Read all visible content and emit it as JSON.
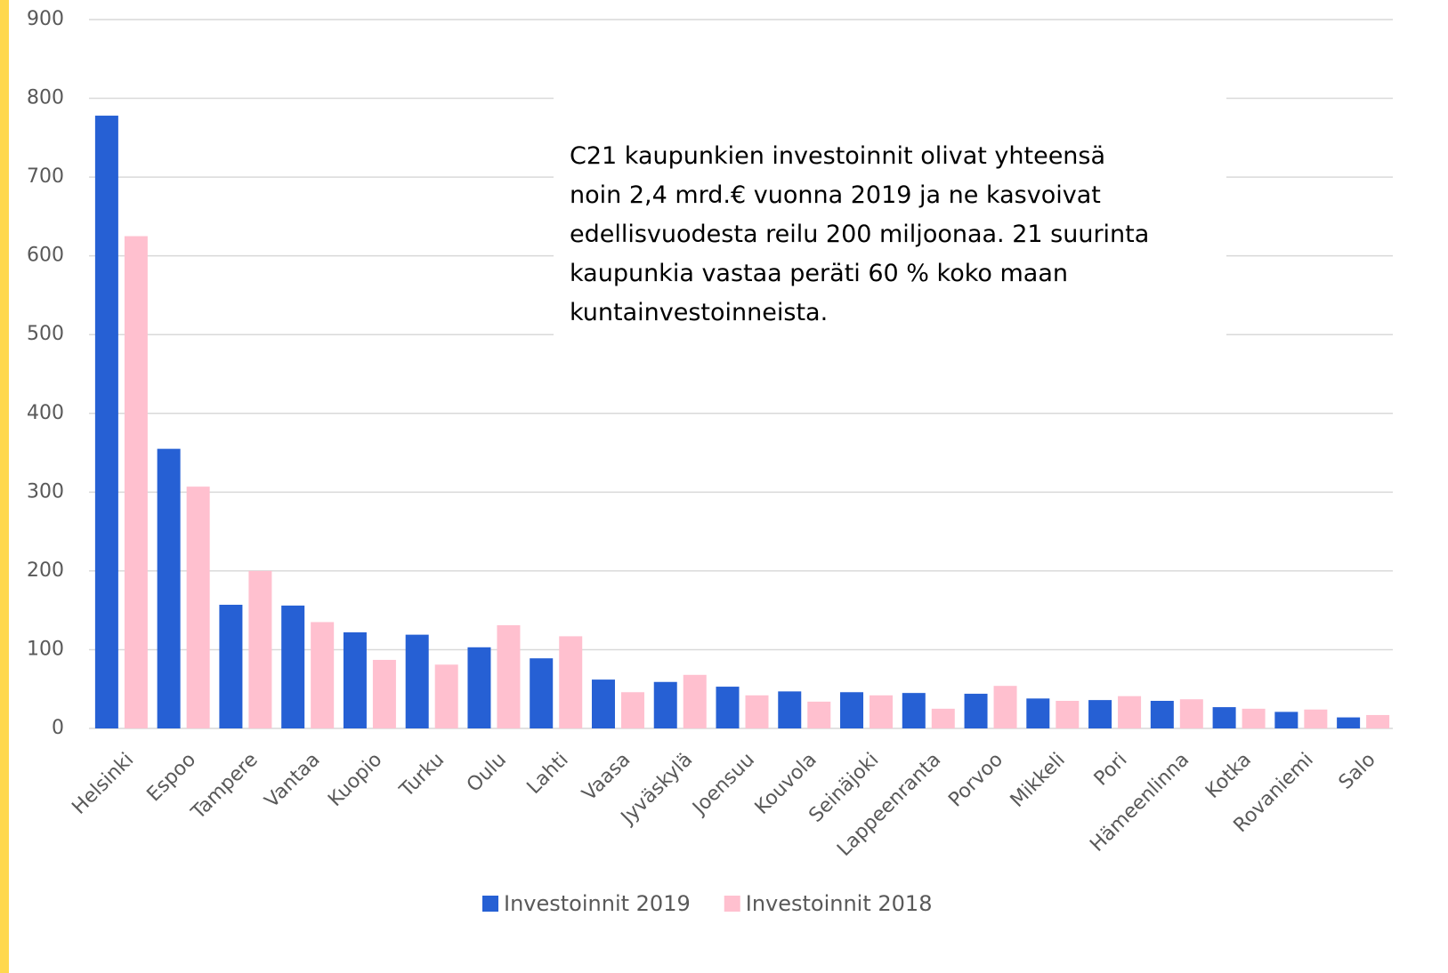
{
  "chart_data": {
    "type": "bar",
    "categories": [
      "Helsinki",
      "Espoo",
      "Tampere",
      "Vantaa",
      "Kuopio",
      "Turku",
      "Oulu",
      "Lahti",
      "Vaasa",
      "Jyväskylä",
      "Joensuu",
      "Kouvola",
      "Seinäjoki",
      "Lappeenranta",
      "Porvoo",
      "Mikkeli",
      "Pori",
      "Hämeenlinna",
      "Kotka",
      "Rovaniemi",
      "Salo"
    ],
    "series": [
      {
        "name": "Investoinnit 2019",
        "color": "#2660d4",
        "values": [
          778,
          355,
          157,
          156,
          122,
          119,
          103,
          89,
          62,
          59,
          53,
          47,
          46,
          45,
          44,
          38,
          36,
          35,
          27,
          21,
          14
        ]
      },
      {
        "name": "Investoinnit 2018",
        "color": "#ffc0cf",
        "values": [
          625,
          307,
          200,
          135,
          87,
          81,
          131,
          117,
          46,
          68,
          42,
          34,
          42,
          25,
          54,
          35,
          41,
          37,
          25,
          24,
          17
        ]
      }
    ],
    "ylim": [
      0,
      900
    ],
    "yticks": [
      0,
      100,
      200,
      300,
      400,
      500,
      600,
      700,
      800,
      900
    ],
    "grid": true,
    "annotation": [
      "C21 kaupunkien investoinnit olivat yhteensä",
      "noin 2,4 mrd.€ vuonna 2019 ja ne kasvoivat",
      "edellisvuodesta reilu 200 miljoonaa. 21 suurinta",
      "kaupunkia vastaa peräti 60 % koko maan",
      "kuntainvestoinneista."
    ],
    "legend": "bottom"
  }
}
